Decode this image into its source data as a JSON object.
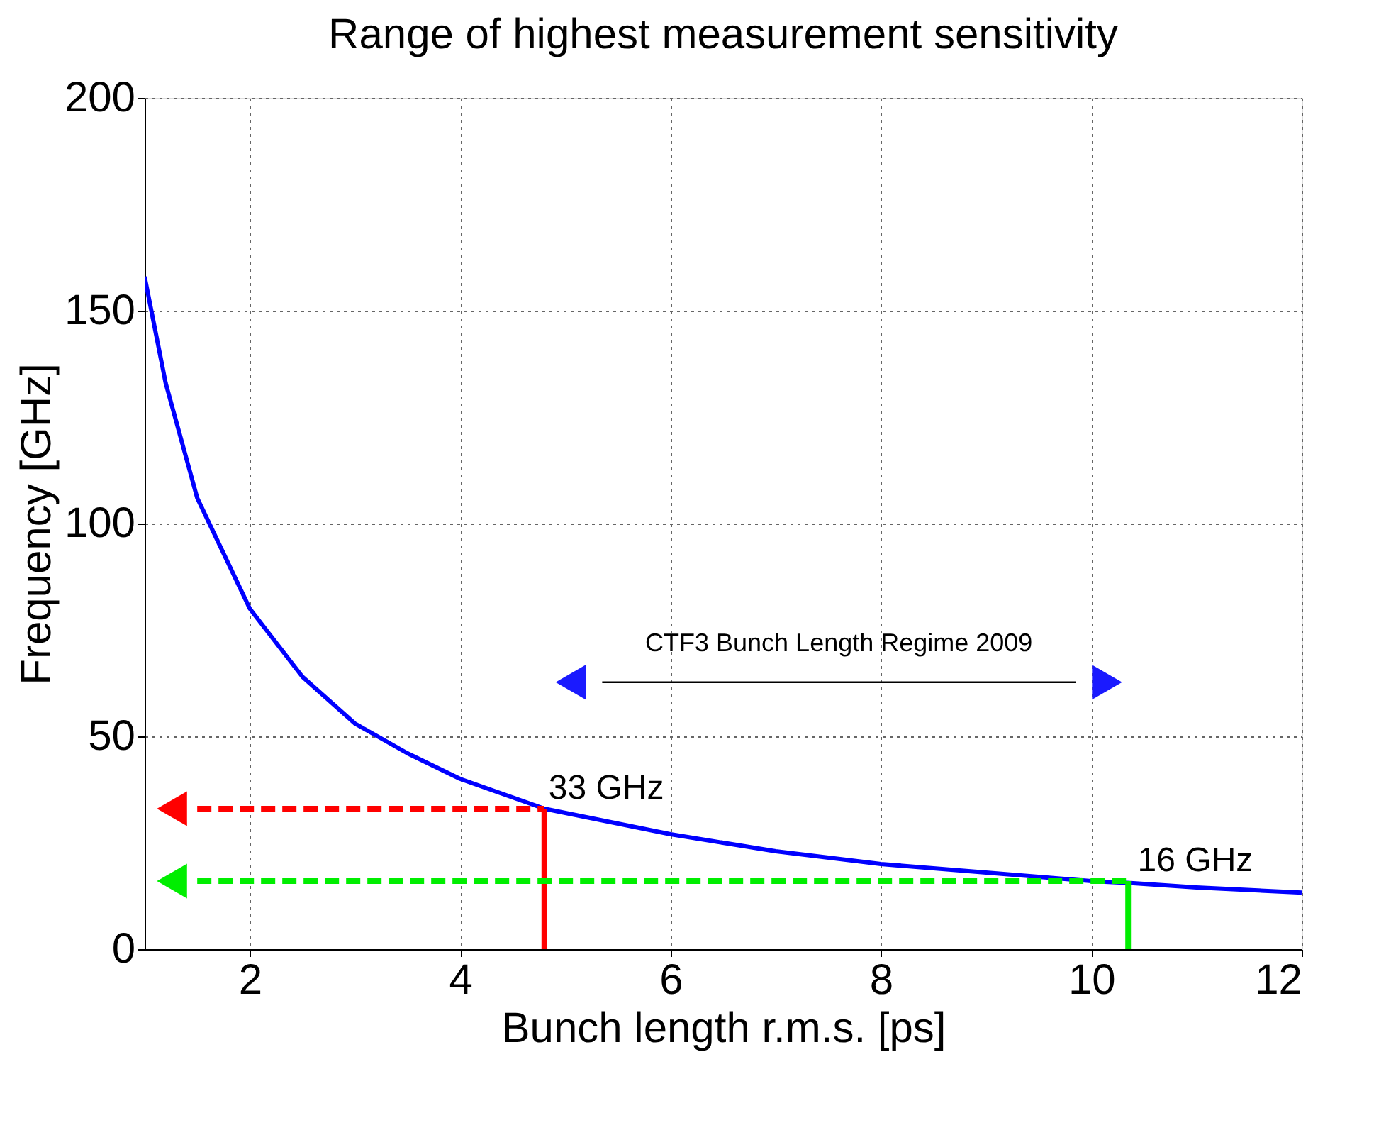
{
  "chart_data": {
    "type": "line",
    "title": "Range of highest measurement sensitivity",
    "xlabel": "Bunch length r.m.s. [ps]",
    "ylabel": "Frequency [GHz]",
    "xlim": [
      1,
      12
    ],
    "xticks": [
      2,
      4,
      6,
      8,
      10,
      12
    ],
    "ylim": [
      0,
      200
    ],
    "yticks": [
      0,
      50,
      100,
      150,
      200
    ],
    "grid": true,
    "series": [
      {
        "color": "#0000ff",
        "line_style": "solid",
        "x": [
          1,
          1.2,
          1.5,
          2,
          2.5,
          3,
          3.5,
          4,
          4.8,
          5,
          6,
          7,
          8,
          9,
          10,
          10.4,
          11,
          12
        ],
        "values": [
          158,
          133,
          106,
          80,
          64,
          53,
          46,
          40,
          33,
          32,
          27,
          23,
          20,
          18,
          16,
          15.5,
          14.5,
          13.3
        ]
      },
      {
        "color": "#ff0000",
        "line_style": "solid",
        "x": [
          4.8,
          4.8
        ],
        "values": [
          0,
          33
        ]
      },
      {
        "color": "#ff0000",
        "line_style": "dashed",
        "x": [
          1.5,
          4.8
        ],
        "values": [
          33,
          33
        ]
      },
      {
        "type": "scatter",
        "color": "#ff0000",
        "marker": "triangle",
        "x": [
          1.26
        ],
        "values": [
          33
        ]
      },
      {
        "color": "#00ee00",
        "line_style": "solid",
        "x": [
          10.35,
          10.35
        ],
        "values": [
          0,
          16
        ]
      },
      {
        "color": "#00ee00",
        "line_style": "dashed",
        "x": [
          1.5,
          10.35
        ],
        "values": [
          16,
          16
        ]
      },
      {
        "type": "scatter",
        "color": "#00ee00",
        "marker": "triangle",
        "x": [
          1.26
        ],
        "values": [
          16
        ]
      },
      {
        "color": "#000000",
        "line_style": "solid",
        "x": [
          5.35,
          9.85
        ],
        "values": [
          62.7,
          62.7
        ]
      },
      {
        "type": "scatter",
        "color": "#1a1aff",
        "marker": "triangle",
        "x": [
          5.05,
          10.15
        ],
        "values": [
          62.7,
          62.7
        ]
      }
    ],
    "annotations": [
      {
        "text": "33 GHz",
        "x": 4.8,
        "y": 33
      },
      {
        "text": "16 GHz",
        "x": 10.4,
        "y": 16
      },
      {
        "text": "CTF3 Bunch Length Regime 2009",
        "x": 7.6,
        "y": 62.7
      }
    ]
  }
}
